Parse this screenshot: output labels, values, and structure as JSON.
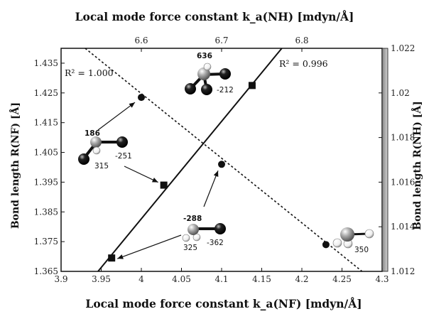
{
  "chart_data": {
    "type": "scatter",
    "title": "Local mode force constant k_a(NH)  [mdyn/Å]",
    "xlabel": "Local mode force constant k_a(NF)  [mdyn/Å]",
    "ylabel_left": "Bond length R(NF) [Å]",
    "ylabel_right": "Bond length R(NH) [Å]",
    "x_bottom": {
      "range": [
        3.9,
        4.3
      ],
      "ticks": [
        "3.9",
        "3.95",
        "4",
        "4.05",
        "4.1",
        "4.15",
        "4.2",
        "4.25",
        "4.3"
      ]
    },
    "x_top": {
      "range": [
        6.5,
        6.9
      ],
      "ticks": [
        "6.6",
        "6.7",
        "6.8"
      ]
    },
    "y_left": {
      "range": [
        1.365,
        1.44
      ],
      "ticks": [
        "1.365",
        "1.375",
        "1.385",
        "1.395",
        "1.405",
        "1.415",
        "1.425",
        "1.435"
      ]
    },
    "y_right": {
      "range": [
        1.012,
        1.022
      ],
      "ticks": [
        "1.012",
        "1.014",
        "1.016",
        "1.018",
        "1.02",
        "1.022"
      ]
    },
    "series": [
      {
        "marker": "square",
        "line": "solid",
        "axes": [
          "bottom",
          "left"
        ],
        "r2_label": "R² = 0.996",
        "x": [
          3.963,
          4.028,
          4.138
        ],
        "y": [
          1.3695,
          1.394,
          1.4275
        ],
        "fit": [
          [
            3.946,
            1.365
          ],
          [
            4.175,
            1.44
          ]
        ]
      },
      {
        "marker": "circle",
        "line": "dotted",
        "axes": [
          "top",
          "right"
        ],
        "r2_label": "R² = 1.000",
        "x": [
          6.6,
          6.7,
          6.83
        ],
        "y": [
          1.0198,
          1.0168,
          1.0132
        ],
        "fit": [
          [
            6.53,
            1.022
          ],
          [
            6.875,
            1.012
          ]
        ]
      }
    ],
    "annotations": {
      "mol_top": {
        "a": "636",
        "b": "-212"
      },
      "mol_left": {
        "a": "186",
        "b": "-251",
        "c": "315"
      },
      "mol_mid": {
        "a": "-288",
        "b": "325",
        "c": "-362"
      },
      "mol_right": {
        "a": "350"
      }
    },
    "grid": false,
    "legend": "none"
  }
}
